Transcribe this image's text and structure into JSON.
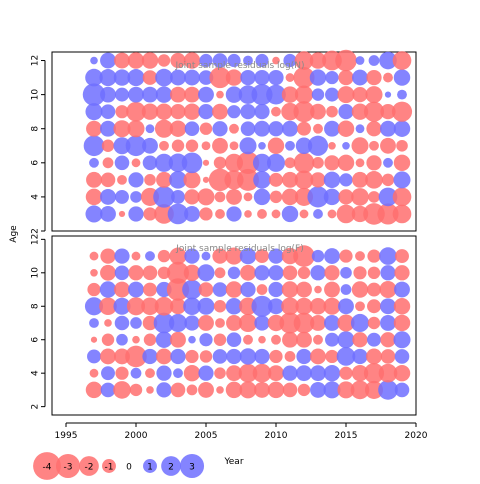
{
  "chart_data": {
    "type": "scatter",
    "subtype": "bubble-residuals",
    "colors": {
      "positive": "#6f6fff",
      "negative": "#ff6f6f",
      "frame": "#000000",
      "title": "#8a8a8a"
    },
    "xlabel": "Year",
    "ylabel": "Age",
    "xlim": [
      1994,
      2020
    ],
    "xticks": [
      1995,
      2000,
      2005,
      2010,
      2015,
      2020
    ],
    "years": [
      1997,
      1998,
      1999,
      2000,
      2001,
      2002,
      2003,
      2004,
      2005,
      2006,
      2007,
      2008,
      2009,
      2010,
      2011,
      2012,
      2013,
      2014,
      2015,
      2016,
      2017,
      2018,
      2019
    ],
    "panels": [
      {
        "title": "Joint sample residuals log(N)",
        "ylim": [
          2,
          12.5
        ],
        "yticks": [
          2,
          4,
          6,
          8,
          10,
          12
        ],
        "ages": [
          3,
          4,
          5,
          6,
          7,
          8,
          9,
          10,
          11,
          12
        ],
        "residuals": [
          [
            1.5,
            1.3,
            -0.2,
            1.2,
            -0.9,
            -2.0,
            2.2,
            1.3,
            -0.9,
            -0.5,
            1.2,
            -0.3,
            -0.5,
            -0.4,
            1.4,
            -0.4,
            0.5,
            -0.4,
            -1.8,
            -1.4,
            -2.4,
            -2.3,
            -1.8
          ],
          [
            -1.4,
            1.3,
            1.0,
            0.7,
            -1.7,
            2.4,
            1.0,
            -1.2,
            -1.5,
            -0.6,
            -1.3,
            -0.4,
            1.4,
            -0.8,
            -1.4,
            -1.7,
            2.3,
            1.4,
            -1.2,
            -1.6,
            -0.7,
            1.8,
            -1.8
          ],
          [
            -1.3,
            -1.1,
            -0.5,
            1.2,
            -0.7,
            -1.3,
            1.6,
            -1.5,
            -0.2,
            -2.6,
            -1.9,
            -2.5,
            1.6,
            -1.0,
            -1.3,
            -1.8,
            -1.2,
            1.4,
            0.9,
            -1.3,
            -1.6,
            -0.8,
            1.5
          ],
          [
            0.5,
            -0.6,
            1.1,
            -0.4,
            1.1,
            1.7,
            1.8,
            2.2,
            -0.2,
            -0.8,
            -1.7,
            -2.6,
            1.7,
            1.7,
            -0.6,
            -2.2,
            -0.7,
            -1.2,
            -1.4,
            -0.4,
            -1.2,
            0.5,
            -1.4
          ],
          [
            2.2,
            -0.8,
            1.5,
            2.2,
            1.3,
            -0.5,
            -0.8,
            -0.8,
            -0.4,
            -1.3,
            -0.4,
            1.5,
            0.3,
            -1.4,
            0.5,
            1.4,
            2.1,
            -0.3,
            0.3,
            -1.5,
            -0.5,
            -1.3,
            -0.7
          ],
          [
            -1.3,
            1.3,
            -1.5,
            -1.5,
            0.4,
            -1.7,
            -1.4,
            1.1,
            -0.8,
            1.2,
            -0.5,
            1.1,
            1.3,
            1.2,
            1.3,
            -1.0,
            -0.5,
            1.3,
            -1.4,
            0.4,
            -1.2,
            1.3,
            1.4
          ],
          [
            1.5,
            1.1,
            -0.9,
            -2.0,
            -1.4,
            -1.4,
            -1.2,
            -1.4,
            1.2,
            -1.3,
            0.9,
            1.2,
            1.2,
            -0.5,
            -1.6,
            -2.3,
            -1.3,
            -0.7,
            1.2,
            -1.4,
            -2.1,
            -1.2,
            -2.1
          ],
          [
            2.6,
            1.3,
            1.0,
            1.3,
            1.3,
            1.4,
            -1.3,
            -1.3,
            1.3,
            -0.3,
            1.4,
            1.8,
            2.3,
            2.0,
            -1.4,
            -1.7,
            0.8,
            1.0,
            -1.5,
            -1.2,
            -1.5,
            0.2,
            0.5
          ],
          [
            1.6,
            1.5,
            1.4,
            1.5,
            -1.1,
            1.6,
            1.3,
            1.3,
            1.1,
            -2.3,
            -1.4,
            1.2,
            1.2,
            1.2,
            -0.4,
            -2.3,
            1.4,
            0.9,
            -1.2,
            1.3,
            -1.2,
            -0.5,
            1.4
          ],
          [
            0.3,
            1.3,
            -1.3,
            -1.4,
            -1.4,
            -0.8,
            -1.2,
            -1.4,
            0.9,
            1.1,
            0.9,
            0.5,
            0.9,
            -0.3,
            0.9,
            -1.8,
            -1.4,
            -2.0,
            -2.4,
            0.4,
            0.6,
            1.6,
            -1.8
          ]
        ]
      },
      {
        "title": "Joint sample residuals log(F)",
        "ylim": [
          1.5,
          12.2
        ],
        "yticks": [
          2,
          4,
          6,
          8,
          10,
          12
        ],
        "ages": [
          3,
          4,
          5,
          6,
          7,
          8,
          9,
          10,
          11
        ],
        "residuals": [
          [
            -1.4,
            1.1,
            -1.6,
            -0.8,
            -0.3,
            1.2,
            -1.1,
            -0.6,
            -1.3,
            -0.3,
            -1.4,
            -1.5,
            -1.3,
            -1.4,
            -1.1,
            -0.8,
            1.3,
            1.5,
            -1.5,
            -1.8,
            -1.7,
            2.0,
            1.1
          ],
          [
            -0.4,
            1.0,
            -0.9,
            0.6,
            -0.5,
            1.2,
            0.5,
            -1.4,
            1.2,
            -0.7,
            -1.3,
            -1.8,
            -1.8,
            -1.3,
            1.2,
            1.3,
            1.3,
            1.4,
            -0.9,
            -1.4,
            -2.1,
            -1.8,
            -1.4
          ],
          [
            1.0,
            -1.3,
            -1.3,
            -2.4,
            1.2,
            -1.3,
            1.2,
            -0.9,
            -0.8,
            1.1,
            1.2,
            1.4,
            1.2,
            -0.9,
            -0.6,
            1.2,
            -1.3,
            -0.9,
            1.8,
            1.2,
            -1.3,
            -1.1,
            1.1
          ],
          [
            -0.2,
            -0.8,
            0.7,
            -0.3,
            -0.8,
            1.4,
            -1.3,
            0.3,
            0.9,
            -0.8,
            1.1,
            -0.5,
            -0.3,
            -0.5,
            -1.3,
            -1.3,
            -0.5,
            1.0,
            1.5,
            -1.2,
            1.0,
            -1.2,
            1.5
          ],
          [
            0.5,
            -0.3,
            1.1,
            0.7,
            -1.1,
            2.2,
            1.7,
            1.2,
            -1.3,
            -0.5,
            -1.3,
            -1.7,
            1.2,
            -1.4,
            -2.3,
            -2.2,
            -1.3,
            1.3,
            -1.5,
            1.7,
            -0.8,
            1.3,
            -1.4
          ],
          [
            1.7,
            -1.6,
            1.5,
            -1.7,
            -1.6,
            -1.8,
            -1.3,
            1.6,
            1.5,
            -0.8,
            1.4,
            -1.6,
            2.3,
            1.3,
            -1.6,
            -1.5,
            -1.4,
            -1.5,
            1.3,
            -0.5,
            -1.0,
            1.3,
            -1.4
          ],
          [
            -0.9,
            1.4,
            -1.3,
            1.3,
            -1.0,
            1.2,
            -2.6,
            2.0,
            -1.1,
            1.1,
            -1.4,
            1.2,
            -0.6,
            1.2,
            -1.4,
            -1.3,
            -0.3,
            -1.3,
            0.6,
            -1.4,
            -1.0,
            -1.5,
            1.3
          ],
          [
            -0.3,
            -1.3,
            1.1,
            -1.2,
            -1.1,
            -0.8,
            -2.5,
            -1.4,
            1.5,
            -0.6,
            0.8,
            -1.3,
            1.2,
            1.2,
            -1.1,
            -0.8,
            1.2,
            -1.2,
            0.7,
            -0.9,
            -0.8,
            1.2,
            -1.2
          ],
          [
            -0.4,
            -1.2,
            1.2,
            -0.4,
            0.5,
            -0.8,
            -1.5,
            1.2,
            0.4,
            -1.2,
            -1.5,
            1.4,
            -1.0,
            1.2,
            -1.4,
            -2.4,
            0.8,
            1.3,
            -0.9,
            -0.5,
            -0.9,
            1.6,
            -1.0
          ]
        ]
      }
    ],
    "legend": {
      "values": [
        -4,
        -3,
        -2,
        -1,
        0,
        1,
        2,
        3
      ],
      "labels": [
        "-4",
        "-3",
        "-2",
        "-1",
        "0",
        "1",
        "2",
        "3"
      ]
    }
  }
}
